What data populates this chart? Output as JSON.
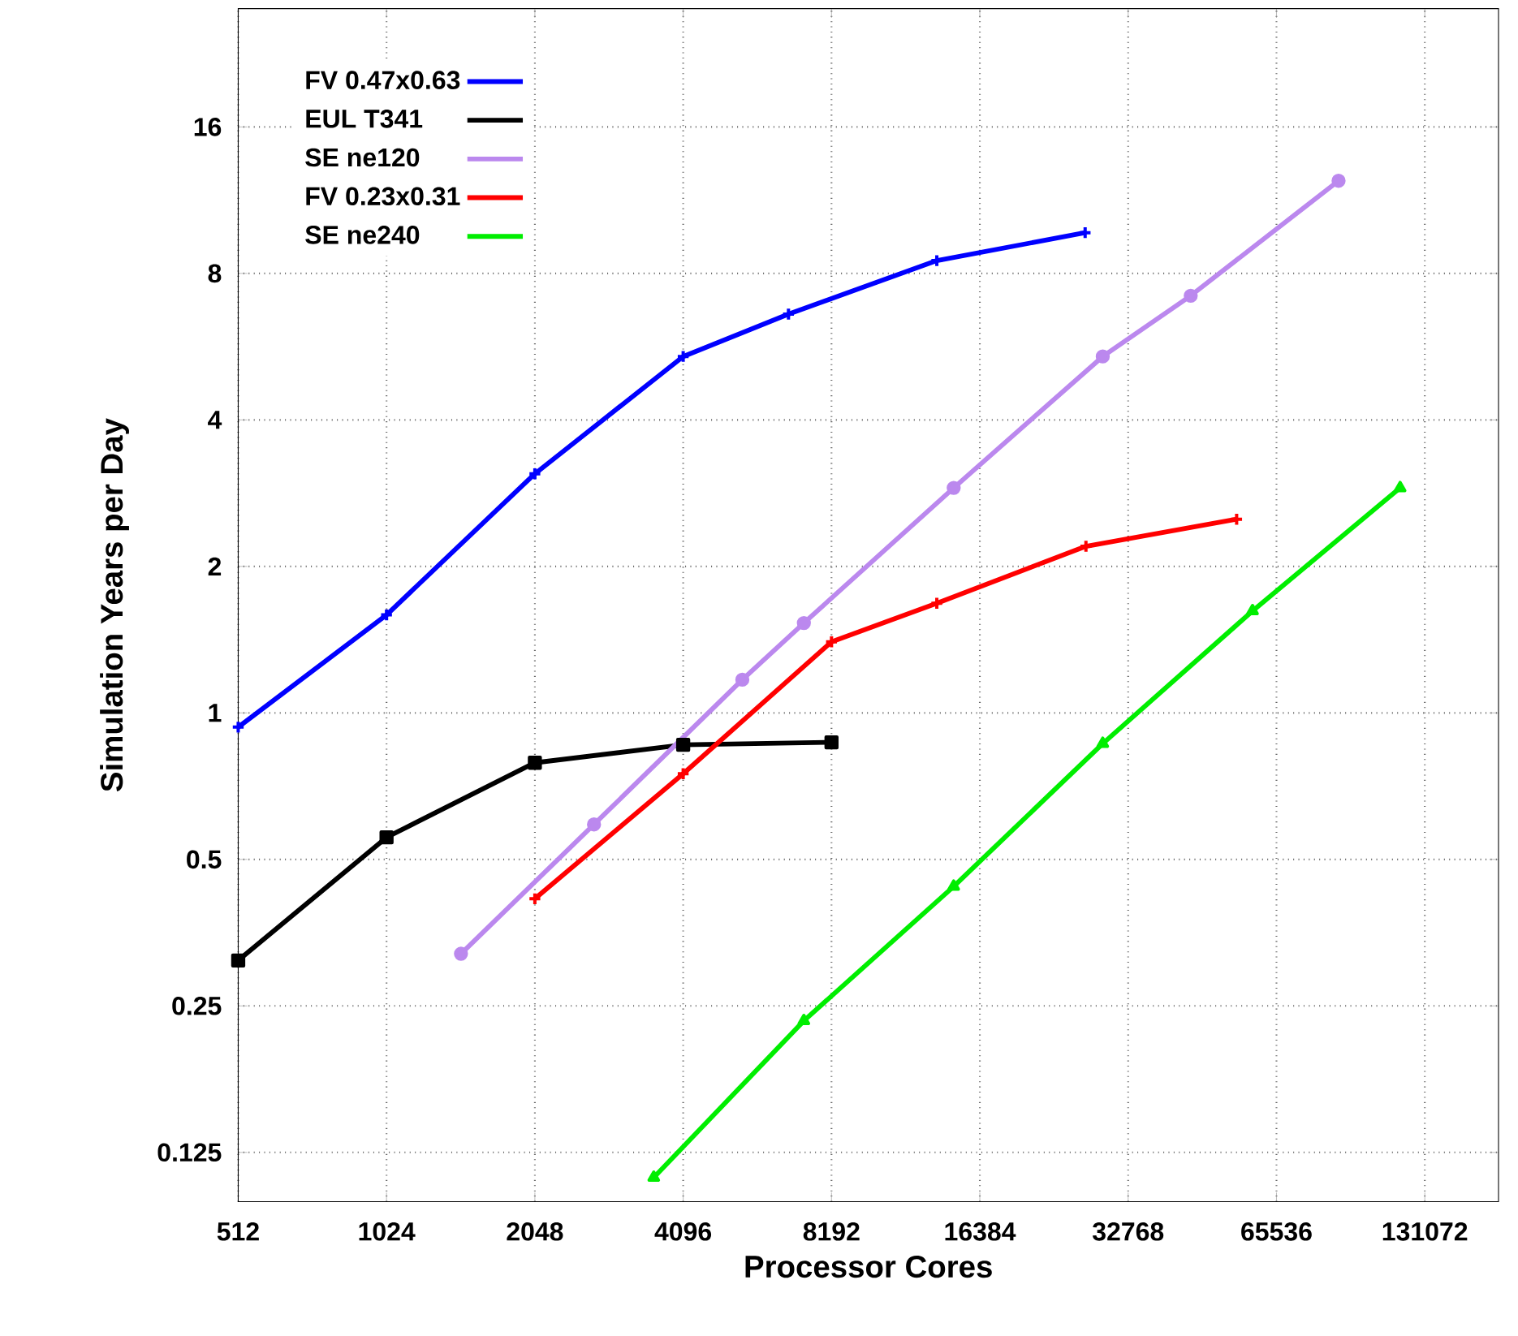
{
  "chart_data": {
    "type": "line",
    "xlabel": "Processor Cores",
    "ylabel": "Simulation Years per Day",
    "log": "xy",
    "grid": true,
    "legend": "top left",
    "xlim": [
      512,
      185000
    ],
    "ylim": [
      0.099,
      28
    ],
    "xticks": [
      512,
      1024,
      2048,
      4096,
      8192,
      16384,
      32768,
      65536,
      131072
    ],
    "yticks": [
      0.125,
      0.25,
      0.5,
      1,
      2,
      4,
      8,
      16
    ],
    "series": [
      {
        "name": "FV 0.47x0.63",
        "color": "#0000ff",
        "marker": "cross",
        "x": [
          512,
          1024,
          2048,
          4096,
          6700,
          13400,
          26800
        ],
        "values": [
          0.935,
          1.59,
          3.1,
          5.4,
          6.6,
          8.5,
          9.7
        ]
      },
      {
        "name": "EUL T341",
        "color": "#000000",
        "marker": "square",
        "x": [
          512,
          1024,
          2048,
          4096,
          8192
        ],
        "values": [
          0.31,
          0.555,
          0.79,
          0.86,
          0.87
        ]
      },
      {
        "name": "SE ne120",
        "color": "#bb88ee",
        "marker": "circle",
        "x": [
          1450,
          2700,
          5400,
          7200,
          14500,
          29100,
          43900,
          87600
        ],
        "values": [
          0.32,
          0.59,
          1.17,
          1.53,
          2.9,
          5.4,
          7.2,
          12.4
        ]
      },
      {
        "name": "FV 0.23x0.31",
        "color": "#ff0000",
        "marker": "cross",
        "x": [
          2048,
          4096,
          8192,
          13400,
          26900,
          54400
        ],
        "values": [
          0.415,
          0.75,
          1.4,
          1.68,
          2.2,
          2.5
        ]
      },
      {
        "name": "SE ne240",
        "color": "#00ee00",
        "marker": "triangle",
        "x": [
          3570,
          7200,
          14500,
          29100,
          58600,
          116800
        ],
        "values": [
          0.111,
          0.233,
          0.44,
          0.865,
          1.62,
          2.9
        ]
      }
    ]
  }
}
